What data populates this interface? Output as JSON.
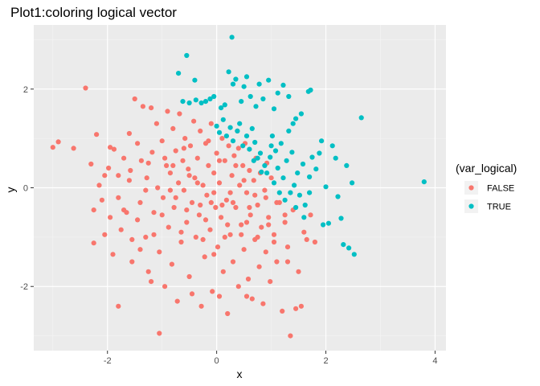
{
  "chart_data": {
    "type": "scatter",
    "title": "Plot1:coloring logical vector",
    "xlabel": "x",
    "ylabel": "y",
    "xlim": [
      -3.35,
      4.2
    ],
    "ylim": [
      -3.3,
      3.3
    ],
    "x_ticks": [
      -2,
      0,
      2,
      4
    ],
    "y_ticks": [
      -2,
      0,
      2
    ],
    "x_tick_labels": [
      "-2",
      "0",
      "2",
      "4"
    ],
    "y_tick_labels": [
      "-2",
      "0",
      "2"
    ],
    "grid": true,
    "legend": {
      "title": "(var_logical)",
      "placement": "right",
      "entries": [
        {
          "label": "FALSE",
          "color": "#F8766D"
        },
        {
          "label": "TRUE",
          "color": "#00BFC4"
        }
      ]
    },
    "series": [
      {
        "name": "FALSE",
        "color": "#F8766D",
        "points": [
          [
            -3.0,
            0.82
          ],
          [
            -2.9,
            0.93
          ],
          [
            -2.62,
            0.8
          ],
          [
            -2.4,
            2.02
          ],
          [
            -2.3,
            0.48
          ],
          [
            -2.2,
            1.08
          ],
          [
            -2.25,
            -0.45
          ],
          [
            -2.25,
            -1.12
          ],
          [
            -2.15,
            0.05
          ],
          [
            -2.05,
            -0.95
          ],
          [
            -1.95,
            0.82
          ],
          [
            -1.98,
            0.4
          ],
          [
            -1.9,
            -1.35
          ],
          [
            -1.88,
            0.78
          ],
          [
            -1.8,
            0.25
          ],
          [
            -1.8,
            -0.2
          ],
          [
            -1.75,
            -0.85
          ],
          [
            -1.7,
            0.6
          ],
          [
            -1.65,
            -0.5
          ],
          [
            -1.6,
            1.1
          ],
          [
            -1.58,
            0.35
          ],
          [
            -1.55,
            -1.5
          ],
          [
            -1.5,
            1.8
          ],
          [
            -1.45,
            0.9
          ],
          [
            -1.4,
            -0.3
          ],
          [
            -1.38,
            0.55
          ],
          [
            -1.35,
            1.65
          ],
          [
            -1.3,
            -1.0
          ],
          [
            -1.28,
            0.2
          ],
          [
            -1.25,
            -1.7
          ],
          [
            -1.2,
            1.62
          ],
          [
            -1.18,
            0.72
          ],
          [
            -1.15,
            -0.5
          ],
          [
            -1.1,
            1.3
          ],
          [
            -1.08,
            0.0
          ],
          [
            -1.05,
            -1.3
          ],
          [
            -1.0,
            0.95
          ],
          [
            -0.98,
            -0.2
          ],
          [
            -0.95,
            -2.0
          ],
          [
            -0.92,
            0.45
          ],
          [
            -0.9,
            1.55
          ],
          [
            -0.88,
            -0.8
          ],
          [
            -0.85,
            0.3
          ],
          [
            -0.82,
            -1.55
          ],
          [
            -0.8,
            1.2
          ],
          [
            -0.78,
            -0.4
          ],
          [
            -0.75,
            0.75
          ],
          [
            -0.72,
            -2.3
          ],
          [
            -0.7,
            0.1
          ],
          [
            -0.68,
            1.5
          ],
          [
            -0.65,
            -1.1
          ],
          [
            -0.62,
            0.55
          ],
          [
            -0.6,
            -0.05
          ],
          [
            -0.58,
            1.0
          ],
          [
            -0.55,
            -0.7
          ],
          [
            -0.52,
            0.38
          ],
          [
            -0.5,
            -1.8
          ],
          [
            -0.48,
            0.85
          ],
          [
            -0.45,
            -0.3
          ],
          [
            -0.42,
            1.35
          ],
          [
            -0.4,
            0.2
          ],
          [
            -0.38,
            -1.0
          ],
          [
            -0.35,
            0.6
          ],
          [
            -0.32,
            -0.55
          ],
          [
            -0.3,
            1.15
          ],
          [
            -0.28,
            -2.4
          ],
          [
            -0.25,
            0.05
          ],
          [
            -0.22,
            -1.4
          ],
          [
            -0.2,
            0.9
          ],
          [
            -0.18,
            -0.15
          ],
          [
            -0.15,
            0.45
          ],
          [
            -0.12,
            -0.85
          ],
          [
            -0.1,
            1.3
          ],
          [
            -0.08,
            -2.1
          ],
          [
            -0.05,
            0.3
          ],
          [
            -0.02,
            -0.4
          ],
          [
            0.0,
            0.7
          ],
          [
            0.02,
            -1.2
          ],
          [
            0.05,
            0.1
          ],
          [
            0.08,
            -0.6
          ],
          [
            0.1,
            1.0
          ],
          [
            0.12,
            -1.7
          ],
          [
            0.15,
            0.55
          ],
          [
            0.18,
            -0.25
          ],
          [
            0.2,
            -2.55
          ],
          [
            0.22,
            0.85
          ],
          [
            0.25,
            -0.95
          ],
          [
            0.28,
            0.25
          ],
          [
            0.3,
            -1.5
          ],
          [
            0.32,
            0.65
          ],
          [
            0.35,
            -0.4
          ],
          [
            0.38,
            1.15
          ],
          [
            0.4,
            -2.0
          ],
          [
            0.42,
            0.05
          ],
          [
            0.45,
            -0.75
          ],
          [
            0.48,
            0.45
          ],
          [
            0.5,
            -1.25
          ],
          [
            0.52,
            0.9
          ],
          [
            0.55,
            -0.1
          ],
          [
            0.58,
            -1.85
          ],
          [
            0.6,
            0.35
          ],
          [
            0.62,
            -0.55
          ],
          [
            0.65,
            -2.25
          ],
          [
            0.68,
            0.15
          ],
          [
            0.7,
            -1.05
          ],
          [
            0.72,
            0.6
          ],
          [
            0.75,
            -0.35
          ],
          [
            0.78,
            -1.6
          ],
          [
            0.8,
            0.3
          ],
          [
            0.82,
            -0.8
          ],
          [
            0.85,
            -2.35
          ],
          [
            0.88,
            -0.05
          ],
          [
            0.9,
            -1.3
          ],
          [
            0.92,
            0.5
          ],
          [
            0.95,
            -0.6
          ],
          [
            0.98,
            -1.9
          ],
          [
            1.0,
            0.2
          ],
          [
            1.05,
            -0.95
          ],
          [
            1.1,
            -1.5
          ],
          [
            1.15,
            -0.3
          ],
          [
            1.2,
            -2.5
          ],
          [
            1.25,
            -0.7
          ],
          [
            1.3,
            -1.2
          ],
          [
            1.35,
            -3.0
          ],
          [
            1.4,
            -0.45
          ],
          [
            1.45,
            -2.45
          ],
          [
            1.5,
            -1.7
          ],
          [
            1.55,
            -2.4
          ],
          [
            1.6,
            -0.9
          ],
          [
            1.65,
            -1.05
          ],
          [
            1.72,
            -0.55
          ],
          [
            1.8,
            -1.1
          ],
          [
            -1.05,
            -2.95
          ],
          [
            -0.85,
            -0.05
          ],
          [
            -0.55,
            -0.45
          ],
          [
            -0.3,
            -0.35
          ],
          [
            -0.1,
            -0.3
          ],
          [
            0.1,
            -0.35
          ],
          [
            0.3,
            -0.3
          ],
          [
            0.6,
            -0.4
          ],
          [
            0.9,
            -0.2
          ],
          [
            1.1,
            -0.3
          ],
          [
            -1.4,
            -1.25
          ],
          [
            -1.15,
            -0.95
          ],
          [
            -0.65,
            -0.9
          ],
          [
            -0.25,
            -1.05
          ],
          [
            0.15,
            -1.0
          ],
          [
            0.45,
            -0.95
          ],
          [
            0.75,
            -1.0
          ],
          [
            1.05,
            -1.1
          ],
          [
            -1.8,
            -2.4
          ],
          [
            -0.45,
            -2.15
          ],
          [
            0.05,
            -2.2
          ],
          [
            0.55,
            -2.2
          ],
          [
            1.3,
            -1.5
          ],
          [
            -1.2,
            -1.9
          ],
          [
            -0.35,
            0.1
          ],
          [
            -0.05,
            -0.1
          ],
          [
            0.25,
            -0.1
          ],
          [
            0.5,
            0.15
          ],
          [
            0.7,
            -0.15
          ],
          [
            -0.75,
            -0.2
          ],
          [
            -1.3,
            -0.05
          ],
          [
            -1.6,
            0.15
          ],
          [
            -2.05,
            0.25
          ],
          [
            -0.5,
            0.25
          ],
          [
            0.35,
            0.45
          ],
          [
            -0.95,
            0.6
          ],
          [
            -1.7,
            -0.45
          ],
          [
            -1.95,
            -0.6
          ],
          [
            -1.45,
            -0.65
          ],
          [
            -1.0,
            -0.55
          ],
          [
            -0.2,
            -0.65
          ],
          [
            0.2,
            -0.75
          ],
          [
            0.55,
            -0.7
          ],
          [
            0.95,
            -0.75
          ],
          [
            1.25,
            -0.55
          ],
          [
            -0.6,
            0.8
          ],
          [
            -0.15,
            0.95
          ],
          [
            0.4,
            0.8
          ],
          [
            -1.25,
            0.5
          ],
          [
            -0.8,
            0.45
          ],
          [
            0.05,
            0.55
          ],
          [
            -2.1,
            -0.25
          ],
          [
            -1.55,
            -1.05
          ],
          [
            -0.05,
            -1.35
          ]
        ]
      },
      {
        "name": "TRUE",
        "color": "#00BFC4",
        "points": [
          [
            -0.7,
            2.32
          ],
          [
            -0.55,
            2.68
          ],
          [
            -0.4,
            2.18
          ],
          [
            -0.62,
            1.75
          ],
          [
            -0.5,
            1.72
          ],
          [
            -0.38,
            1.78
          ],
          [
            -0.28,
            1.72
          ],
          [
            -0.2,
            1.75
          ],
          [
            -0.12,
            1.8
          ],
          [
            -0.05,
            1.85
          ],
          [
            0.08,
            1.62
          ],
          [
            0.15,
            1.68
          ],
          [
            0.22,
            2.35
          ],
          [
            0.28,
            3.05
          ],
          [
            0.3,
            2.1
          ],
          [
            0.35,
            2.2
          ],
          [
            0.45,
            1.75
          ],
          [
            0.5,
            2.05
          ],
          [
            0.55,
            2.25
          ],
          [
            0.62,
            1.85
          ],
          [
            0.72,
            1.65
          ],
          [
            0.78,
            2.1
          ],
          [
            0.85,
            1.8
          ],
          [
            0.95,
            2.18
          ],
          [
            1.05,
            1.6
          ],
          [
            1.12,
            1.92
          ],
          [
            1.22,
            2.08
          ],
          [
            1.32,
            1.85
          ],
          [
            1.45,
            1.4
          ],
          [
            1.55,
            1.5
          ],
          [
            1.68,
            1.95
          ],
          [
            1.72,
            1.98
          ],
          [
            0.0,
            1.25
          ],
          [
            0.05,
            1.12
          ],
          [
            0.12,
            1.38
          ],
          [
            0.18,
            1.05
          ],
          [
            0.25,
            1.22
          ],
          [
            0.3,
            0.95
          ],
          [
            0.38,
            1.15
          ],
          [
            0.42,
            1.3
          ],
          [
            0.48,
            0.85
          ],
          [
            0.55,
            1.05
          ],
          [
            0.6,
            0.78
          ],
          [
            0.65,
            1.2
          ],
          [
            0.7,
            0.92
          ],
          [
            0.75,
            0.6
          ],
          [
            0.8,
            0.7
          ],
          [
            0.88,
            0.45
          ],
          [
            0.92,
            0.3
          ],
          [
            0.98,
            0.62
          ],
          [
            1.02,
            1.05
          ],
          [
            1.08,
            0.75
          ],
          [
            1.12,
            0.4
          ],
          [
            1.18,
            0.9
          ],
          [
            1.22,
            0.2
          ],
          [
            1.28,
            0.55
          ],
          [
            1.32,
            1.15
          ],
          [
            1.38,
            0.72
          ],
          [
            1.42,
            0.05
          ],
          [
            1.48,
            0.3
          ],
          [
            1.52,
            -0.15
          ],
          [
            1.58,
            0.48
          ],
          [
            1.62,
            -0.35
          ],
          [
            1.7,
            0.22
          ],
          [
            1.75,
            0.62
          ],
          [
            1.82,
            0.38
          ],
          [
            1.88,
            0.7
          ],
          [
            1.92,
            0.95
          ],
          [
            2.0,
            0.02
          ],
          [
            2.05,
            -0.72
          ],
          [
            2.12,
            0.85
          ],
          [
            2.18,
            0.6
          ],
          [
            2.22,
            -0.18
          ],
          [
            2.28,
            -0.62
          ],
          [
            2.32,
            -1.15
          ],
          [
            2.38,
            0.45
          ],
          [
            2.42,
            -1.22
          ],
          [
            2.48,
            0.1
          ],
          [
            2.52,
            -1.35
          ],
          [
            2.65,
            1.42
          ],
          [
            3.8,
            0.12
          ],
          [
            1.95,
            -0.75
          ],
          [
            1.35,
            -0.1
          ],
          [
            1.15,
            -0.1
          ],
          [
            1.25,
            -0.25
          ],
          [
            1.45,
            -0.4
          ],
          [
            1.6,
            -0.6
          ],
          [
            1.05,
            0.1
          ],
          [
            1.7,
            -0.1
          ],
          [
            0.82,
            0.32
          ],
          [
            0.68,
            0.55
          ],
          [
            1.0,
            0.85
          ],
          [
            1.4,
            1.3
          ]
        ]
      }
    ]
  }
}
